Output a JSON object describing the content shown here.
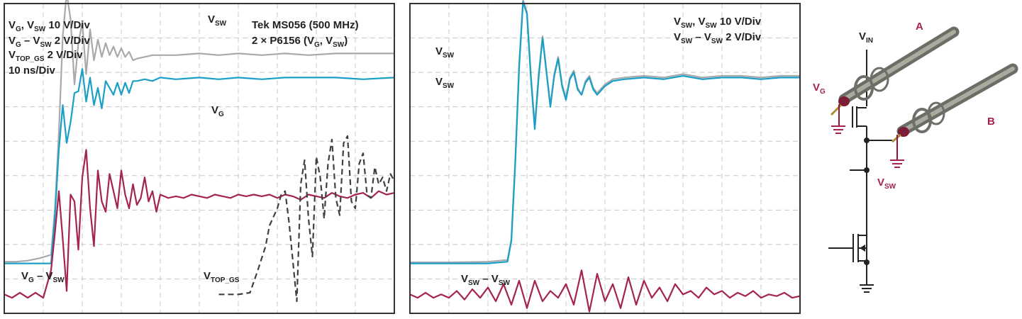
{
  "colors": {
    "gray": "#a7a9ac",
    "blue": "#1aa0c6",
    "red": "#a4244f",
    "dash": "#3d4044",
    "frame": "#333333",
    "grid": "#c8c8c8"
  },
  "panel_left": {
    "info": {
      "t1": "V",
      "t1a": "G",
      "t1b": ", V",
      "t1c": "SW",
      "t1d": " 10 V/Div",
      "t2": "V",
      "t2a": "G",
      "t2b": " – V",
      "t2c": "SW",
      "t2d": " 2 V/Div",
      "t3": "V",
      "t3a": "TOP_GS",
      "t3b": " 2 V/Div",
      "t4": "10 ns/Div"
    },
    "tek": {
      "l1": "Tek MS056 (500 MHz)",
      "l2a": "2 × P6156 (V",
      "l2b": "G",
      "l2c": ", V",
      "l2d": "SW",
      "l2e": ")"
    },
    "lbl_vsw": {
      "v": "V",
      "s": "SW"
    },
    "lbl_vg": {
      "v": "V",
      "s": "G"
    },
    "lbl_diff": {
      "v": "V",
      "s1": "G",
      "m": " – V",
      "s2": "SW"
    },
    "lbl_top": {
      "v": "V",
      "s": "TOP_GS"
    }
  },
  "panel_right": {
    "info": {
      "t1": "V",
      "t1a": "SW",
      "t1b": ", V",
      "t1c": "SW",
      "t1d": " 10 V/Div",
      "t2": "V",
      "t2a": "SW",
      "t2b": " – V",
      "t2c": "SW",
      "t2d": " 2 V/Div"
    },
    "lbl1": {
      "v": "V",
      "s": "SW"
    },
    "lbl2": {
      "v": "V",
      "s": "SW"
    },
    "lbl_diff": {
      "v": "V",
      "s1": "SW",
      "m": " – V",
      "s2": "SW"
    }
  },
  "circuit": {
    "vin": {
      "v": "V",
      "s": "IN"
    },
    "vg": {
      "v": "V",
      "s": "G"
    },
    "vsw": {
      "v": "V",
      "s": "SW"
    },
    "a": "A",
    "b": "B"
  },
  "chart_data": [
    {
      "type": "line",
      "title": "",
      "x_units": "ns",
      "x_range": [
        0,
        100
      ],
      "grid": {
        "x_divisions": 10,
        "y_divisions": 9
      },
      "y_units": "div",
      "series": [
        {
          "name": "VSW",
          "color": "gray",
          "x": [
            0,
            3,
            6,
            9,
            12,
            13,
            14,
            15,
            16,
            17,
            18,
            19,
            20,
            21,
            22,
            23,
            24,
            25,
            26,
            27,
            28,
            29,
            30,
            31,
            32,
            33,
            34,
            36,
            38,
            40,
            44,
            50,
            55,
            60,
            66,
            72,
            78,
            85,
            92,
            100
          ],
          "y": [
            -0.95,
            -0.95,
            -0.92,
            -0.85,
            -0.75,
            0.6,
            2.8,
            5.6,
            6.85,
            6.1,
            4.2,
            5.4,
            6.0,
            4.5,
            5.8,
            4.9,
            5.5,
            5.0,
            5.4,
            5.05,
            5.3,
            5.0,
            5.25,
            5.0,
            5.15,
            4.9,
            4.95,
            5.0,
            5.05,
            5.05,
            5.05,
            5.1,
            5.05,
            5.1,
            5.05,
            5.1,
            5.05,
            5.1,
            5.1,
            5.1
          ]
        },
        {
          "name": "VG",
          "color": "blue",
          "x": [
            0,
            3,
            6,
            9,
            12,
            13,
            14,
            15,
            16,
            17,
            18,
            19,
            20,
            21,
            22,
            23,
            24,
            25,
            26,
            27,
            28,
            29,
            30,
            31,
            32,
            33,
            34,
            36,
            38,
            40,
            44,
            50,
            55,
            60,
            66,
            72,
            78,
            85,
            92,
            100
          ],
          "y": [
            -1.0,
            -1.0,
            -1.0,
            -1.0,
            -1.0,
            0.4,
            2.3,
            3.6,
            2.5,
            3.1,
            3.95,
            4.0,
            4.65,
            3.7,
            4.4,
            3.6,
            4.1,
            3.5,
            4.3,
            4.1,
            3.9,
            4.25,
            3.9,
            4.25,
            3.95,
            4.3,
            4.3,
            4.35,
            4.3,
            4.4,
            4.35,
            4.4,
            4.35,
            4.4,
            4.35,
            4.4,
            4.4,
            4.4,
            4.35,
            4.4
          ]
        },
        {
          "name": "VG - VSW",
          "color": "red",
          "x": [
            0,
            2,
            4,
            6,
            8,
            10,
            11,
            12,
            13,
            14,
            15,
            16,
            17,
            18,
            19,
            20,
            21,
            22,
            23,
            24,
            25,
            26,
            27,
            28,
            29,
            30,
            31,
            32,
            33,
            34,
            35,
            36,
            37,
            38,
            39,
            40,
            42,
            44,
            46,
            48,
            50,
            52,
            54,
            56,
            58,
            60,
            62,
            64,
            66,
            68,
            70,
            72,
            74,
            76,
            78,
            80,
            82,
            84,
            86,
            88,
            90,
            92,
            94,
            96,
            98,
            100
          ],
          "y": [
            -1.9,
            -2.0,
            -1.85,
            -2.0,
            -1.85,
            -2.0,
            -1.6,
            -1.2,
            -0.1,
            1.1,
            -0.3,
            -1.8,
            1.0,
            0.8,
            -0.6,
            1.5,
            2.3,
            0.6,
            -0.5,
            1.7,
            0.8,
            0.5,
            1.6,
            1.1,
            0.6,
            1.7,
            1.0,
            0.6,
            1.3,
            0.7,
            0.9,
            1.5,
            0.8,
            1.1,
            0.5,
            1.0,
            0.9,
            0.95,
            0.9,
            1.0,
            0.95,
            0.9,
            1.0,
            0.95,
            0.9,
            1.0,
            0.95,
            1.0,
            0.95,
            1.0,
            0.9,
            1.0,
            0.95,
            0.85,
            1.0,
            0.95,
            0.9,
            1.05,
            0.95,
            0.9,
            1.0,
            1.05,
            0.9,
            1.1,
            1.0,
            1.05
          ]
        },
        {
          "name": "VTOP_GS",
          "color": "dash",
          "dashed": true,
          "x": [
            55,
            60,
            63,
            65,
            67,
            68,
            70,
            71,
            72,
            73,
            75,
            76,
            77,
            78,
            79,
            80,
            81,
            82,
            83,
            84,
            85,
            86,
            87,
            88,
            89,
            90,
            91,
            92,
            93,
            94,
            95,
            96,
            97,
            98,
            99,
            100
          ],
          "y": [
            -1.9,
            -1.9,
            -1.85,
            -1.2,
            -0.5,
            0.1,
            0.6,
            1.0,
            1.1,
            0.2,
            -2.1,
            1.3,
            2.0,
            0.3,
            -0.8,
            2.1,
            1.5,
            0.3,
            1.9,
            2.6,
            0.9,
            0.4,
            2.5,
            2.7,
            0.8,
            0.6,
            1.9,
            2.2,
            1.0,
            0.9,
            1.8,
            1.3,
            1.5,
            1.1,
            1.6,
            1.4
          ]
        }
      ]
    },
    {
      "type": "line",
      "title": "",
      "x_units": "ns",
      "x_range": [
        0,
        100
      ],
      "grid": {
        "x_divisions": 10,
        "y_divisions": 9
      },
      "y_units": "div",
      "series": [
        {
          "name": "VSW (gray)",
          "color": "gray",
          "x": [
            0,
            10,
            20,
            25,
            26,
            27,
            28,
            29,
            30,
            31,
            32,
            33,
            34,
            35,
            36,
            37,
            38,
            39,
            40,
            41,
            42,
            43,
            44,
            45,
            46,
            47,
            48,
            50,
            52,
            55,
            60,
            65,
            70,
            75,
            80,
            85,
            90,
            95,
            100
          ],
          "y": [
            -0.97,
            -0.97,
            -0.95,
            -0.9,
            -0.3,
            2.0,
            4.8,
            6.65,
            6.3,
            4.5,
            3.0,
            4.5,
            5.6,
            4.6,
            3.6,
            4.5,
            5.0,
            4.2,
            3.8,
            4.4,
            4.6,
            4.1,
            3.9,
            4.3,
            4.45,
            4.1,
            3.95,
            4.2,
            4.35,
            4.4,
            4.45,
            4.4,
            4.5,
            4.4,
            4.45,
            4.45,
            4.4,
            4.45,
            4.45
          ]
        },
        {
          "name": "VSW (blue)",
          "color": "blue",
          "x": [
            0,
            10,
            20,
            25,
            26,
            27,
            28,
            29,
            30,
            31,
            32,
            33,
            34,
            35,
            36,
            37,
            38,
            39,
            40,
            41,
            42,
            43,
            44,
            45,
            46,
            47,
            48,
            50,
            52,
            55,
            60,
            65,
            70,
            75,
            80,
            85,
            90,
            95,
            100
          ],
          "y": [
            -1.0,
            -1.0,
            -1.0,
            -0.95,
            -0.35,
            1.9,
            4.7,
            6.6,
            6.25,
            4.4,
            2.9,
            4.4,
            5.55,
            4.55,
            3.55,
            4.45,
            4.95,
            4.15,
            3.75,
            4.35,
            4.55,
            4.05,
            3.9,
            4.25,
            4.4,
            4.05,
            3.9,
            4.15,
            4.3,
            4.35,
            4.4,
            4.35,
            4.45,
            4.35,
            4.4,
            4.4,
            4.35,
            4.4,
            4.4
          ]
        },
        {
          "name": "VSW - VSW",
          "color": "red",
          "x": [
            0,
            2,
            4,
            6,
            8,
            10,
            12,
            14,
            16,
            18,
            20,
            22,
            24,
            26,
            28,
            30,
            32,
            34,
            36,
            38,
            40,
            42,
            44,
            46,
            48,
            50,
            52,
            54,
            56,
            58,
            60,
            62,
            64,
            66,
            68,
            70,
            72,
            74,
            76,
            78,
            80,
            82,
            84,
            86,
            88,
            90,
            92,
            94,
            96,
            98,
            100
          ],
          "y": [
            -1.9,
            -2.0,
            -1.85,
            -2.0,
            -1.9,
            -2.0,
            -1.8,
            -2.05,
            -1.75,
            -2.0,
            -1.7,
            -2.1,
            -1.6,
            -2.2,
            -1.5,
            -2.3,
            -1.5,
            -2.1,
            -1.8,
            -2.0,
            -1.6,
            -2.2,
            -1.2,
            -2.4,
            -1.3,
            -2.1,
            -1.6,
            -2.3,
            -1.4,
            -2.2,
            -1.5,
            -2.0,
            -1.7,
            -2.1,
            -1.6,
            -1.9,
            -1.8,
            -2.0,
            -1.7,
            -1.9,
            -1.8,
            -2.0,
            -1.85,
            -1.95,
            -1.8,
            -2.0,
            -1.9,
            -1.95,
            -1.85,
            -2.0,
            -1.95
          ]
        }
      ]
    }
  ]
}
